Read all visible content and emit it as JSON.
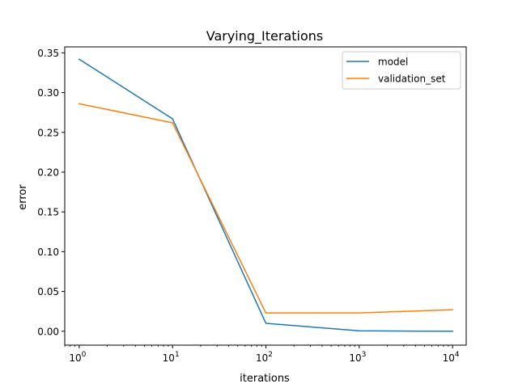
{
  "chart_data": {
    "type": "line",
    "title": "Varying_Iterations",
    "xlabel": "iterations",
    "ylabel": "error",
    "xscale": "log",
    "xlim": [
      0.7,
      14000
    ],
    "ylim": [
      -0.0175,
      0.3575
    ],
    "grid": false,
    "legend_position": "top-right",
    "x": [
      1,
      10,
      100,
      1000,
      10000
    ],
    "x_ticks": [
      {
        "base": "10",
        "exp": "0",
        "value": 1
      },
      {
        "base": "10",
        "exp": "1",
        "value": 10
      },
      {
        "base": "10",
        "exp": "2",
        "value": 100
      },
      {
        "base": "10",
        "exp": "3",
        "value": 1000
      },
      {
        "base": "10",
        "exp": "4",
        "value": 10000
      }
    ],
    "y_ticks": [
      "0.00",
      "0.05",
      "0.10",
      "0.15",
      "0.20",
      "0.25",
      "0.30",
      "0.35"
    ],
    "series": [
      {
        "name": "model",
        "color": "#1f77b4",
        "values": [
          0.342,
          0.267,
          0.01,
          0.0005,
          0.0
        ]
      },
      {
        "name": "validation_set",
        "color": "#ff7f0e",
        "values": [
          0.286,
          0.262,
          0.023,
          0.023,
          0.027
        ]
      }
    ]
  }
}
